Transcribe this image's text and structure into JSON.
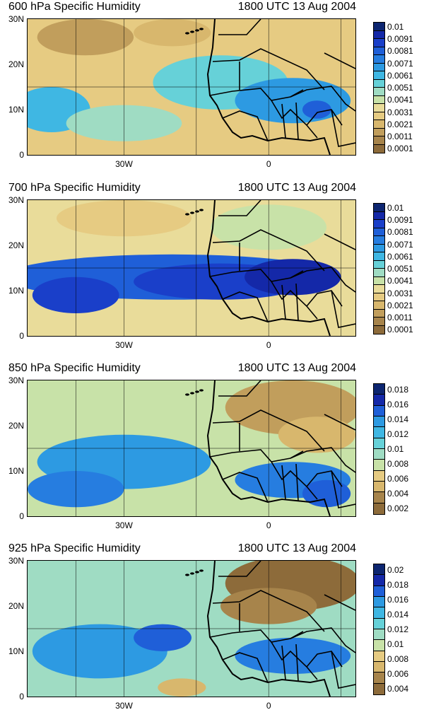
{
  "palette": [
    "#8d6b3a",
    "#a7844b",
    "#c19e5c",
    "#d8b76d",
    "#e6cb82",
    "#e9dc9a",
    "#c8e2a8",
    "#9fdcc3",
    "#66d1d8",
    "#3fb7e3",
    "#2d9ae2",
    "#267de0",
    "#1f5fd8",
    "#1a3fc9",
    "#1428a8",
    "#0c2570"
  ],
  "panels": [
    {
      "title_left": "600 hPa Specific Humidity",
      "title_right": "1800 UTC 13 Aug 2004",
      "lat_labels": [
        "30N",
        "20N",
        "10N",
        "0"
      ],
      "lon_labels": [
        "30W",
        "0"
      ],
      "colorbar_labels": [
        "0.01",
        "0.0091",
        "0.0081",
        "0.0071",
        "0.0061",
        "0.0051",
        "0.0041",
        "0.0031",
        "0.0021",
        "0.0011",
        "0.0001"
      ],
      "colorbar_colors": [
        "#0c2570",
        "#1428a8",
        "#1a3fc9",
        "#1f5fd8",
        "#267de0",
        "#2d9ae2",
        "#3fb7e3",
        "#66d1d8",
        "#9fdcc3",
        "#c8e2a8",
        "#e9dc9a",
        "#e6cb82",
        "#d8b76d",
        "#c19e5c",
        "#a7844b",
        "#8d6b3a"
      ]
    },
    {
      "title_left": "700 hPa Specific Humidity",
      "title_right": "1800 UTC 13 Aug 2004",
      "lat_labels": [
        "30N",
        "20N",
        "10N",
        "0"
      ],
      "lon_labels": [
        "30W",
        "0"
      ],
      "colorbar_labels": [
        "0.01",
        "0.0091",
        "0.0081",
        "0.0071",
        "0.0061",
        "0.0051",
        "0.0041",
        "0.0031",
        "0.0021",
        "0.0011",
        "0.0001"
      ],
      "colorbar_colors": [
        "#0c2570",
        "#1428a8",
        "#1a3fc9",
        "#1f5fd8",
        "#267de0",
        "#2d9ae2",
        "#3fb7e3",
        "#66d1d8",
        "#9fdcc3",
        "#c8e2a8",
        "#e9dc9a",
        "#e6cb82",
        "#d8b76d",
        "#c19e5c",
        "#a7844b",
        "#8d6b3a"
      ]
    },
    {
      "title_left": "850 hPa Specific Humidity",
      "title_right": "1800 UTC 13 Aug 2004",
      "lat_labels": [
        "30N",
        "20N",
        "10N",
        "0"
      ],
      "lon_labels": [
        "30W",
        "0"
      ],
      "colorbar_labels": [
        "0.018",
        "0.016",
        "0.014",
        "0.012",
        "0.01",
        "0.008",
        "0.006",
        "0.004",
        "0.002"
      ],
      "colorbar_colors": [
        "#0c2570",
        "#1428a8",
        "#1f5fd8",
        "#2d9ae2",
        "#3fb7e3",
        "#66d1d8",
        "#9fdcc3",
        "#c8e2a8",
        "#e6cb82",
        "#d8b76d",
        "#a7844b",
        "#8d6b3a"
      ]
    },
    {
      "title_left": "925 hPa Specific Humidity",
      "title_right": "1800 UTC 13 Aug 2004",
      "lat_labels": [
        "30N",
        "20N",
        "10N",
        "0"
      ],
      "lon_labels": [
        "30W",
        "0"
      ],
      "colorbar_labels": [
        "0.02",
        "0.018",
        "0.016",
        "0.014",
        "0.012",
        "0.01",
        "0.008",
        "0.006",
        "0.004"
      ],
      "colorbar_colors": [
        "#0c2570",
        "#1428a8",
        "#1f5fd8",
        "#2d9ae2",
        "#3fb7e3",
        "#66d1d8",
        "#9fdcc3",
        "#c8e2a8",
        "#e6cb82",
        "#d8b76d",
        "#a7844b",
        "#8d6b3a"
      ]
    }
  ]
}
